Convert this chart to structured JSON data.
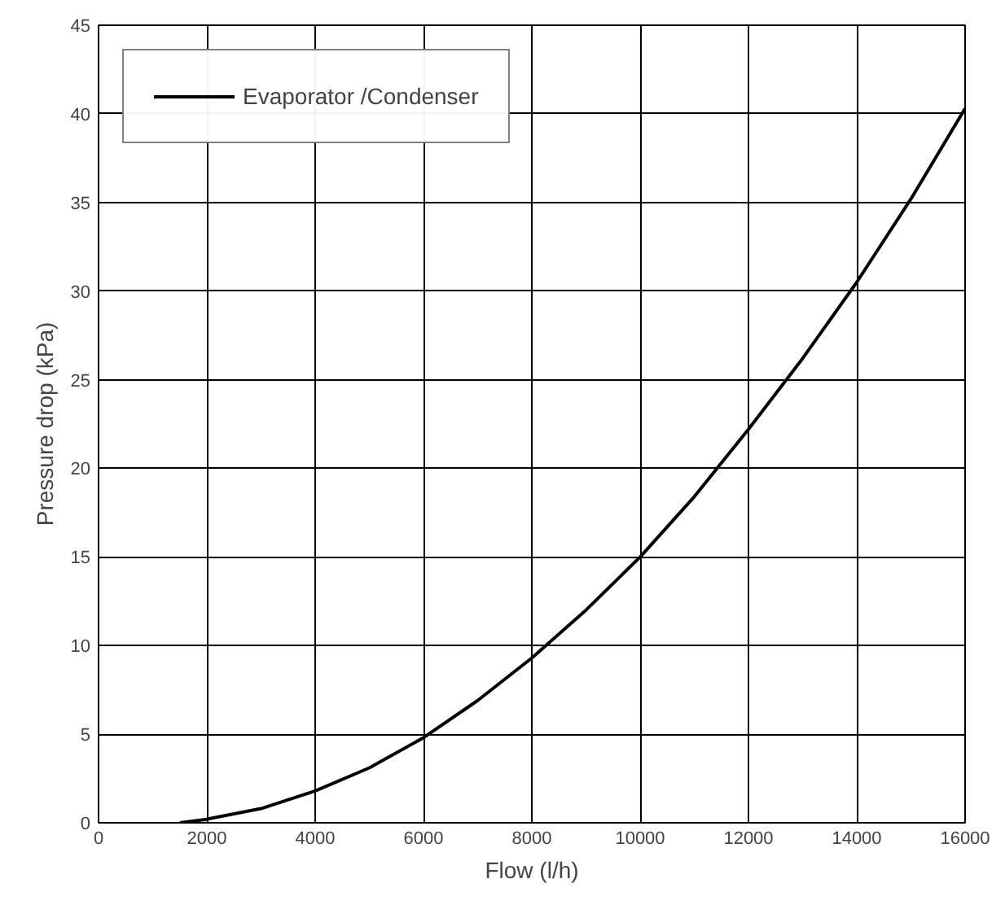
{
  "chart_data": {
    "type": "line",
    "xlabel": "Flow (l/h)",
    "ylabel": "Pressure drop (kPa)",
    "x": [
      1500,
      2000,
      3000,
      4000,
      5000,
      6000,
      7000,
      8000,
      9000,
      10000,
      11000,
      12000,
      13000,
      14000,
      15000,
      16000
    ],
    "series": [
      {
        "name": "Evaporator /Condenser",
        "color": "#000000",
        "values": [
          0,
          0.2,
          0.8,
          1.8,
          3.1,
          4.8,
          6.9,
          9.3,
          12.0,
          15.0,
          18.4,
          22.2,
          26.2,
          30.5,
          35.2,
          40.3
        ]
      }
    ],
    "xlim": [
      0,
      16000
    ],
    "ylim": [
      0,
      45
    ],
    "xticks": [
      0,
      2000,
      4000,
      6000,
      8000,
      10000,
      12000,
      14000,
      16000
    ],
    "yticks": [
      0,
      5,
      10,
      15,
      20,
      25,
      30,
      35,
      40,
      45
    ],
    "grid": true,
    "legend": "top left",
    "marker": "none",
    "line_style": "solid"
  }
}
